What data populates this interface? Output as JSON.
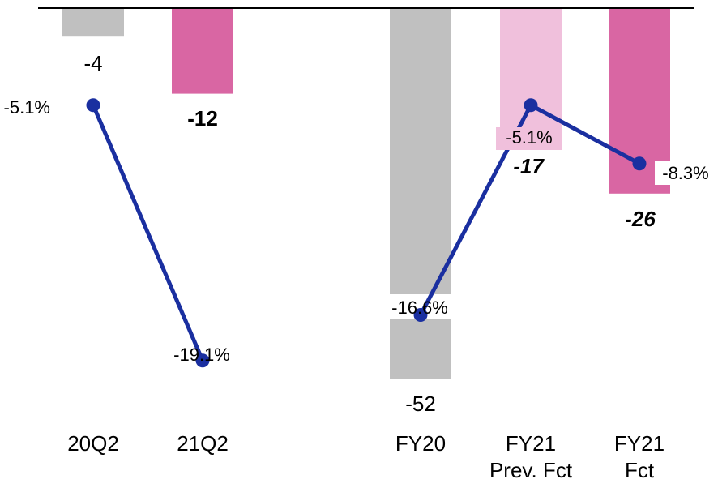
{
  "chart_data": {
    "type": "bar",
    "title": "",
    "xlabel": "",
    "ylabel": "",
    "ylim": [
      -52,
      0
    ],
    "grid": false,
    "legend": "none",
    "categories": [
      {
        "lines": [
          "20Q2"
        ]
      },
      {
        "lines": [
          "21Q2"
        ]
      },
      {
        "lines": [
          "FY20"
        ]
      },
      {
        "lines": [
          "FY21",
          "Prev. Fct"
        ]
      },
      {
        "lines": [
          "FY21",
          "Fct"
        ]
      }
    ],
    "bars": {
      "values": [
        -4,
        -12,
        -52,
        -17,
        -26
      ],
      "labels": [
        "-4",
        "-12",
        "-52",
        "-17",
        "-26"
      ],
      "colors": [
        "#c0c0c0",
        "#d966a3",
        "#c0c0c0",
        "#f0c0dc",
        "#d966a3"
      ],
      "label_bold": [
        false,
        true,
        false,
        true,
        true
      ],
      "label_italic": [
        false,
        false,
        false,
        true,
        true
      ]
    },
    "line_series": [
      {
        "points": [
          {
            "category": 0,
            "value": -5.1,
            "label": "-5.1%"
          },
          {
            "category": 1,
            "value": -19.1,
            "label": "-19.1%"
          }
        ]
      },
      {
        "points": [
          {
            "category": 2,
            "value": -16.6,
            "label": "-16.6%"
          },
          {
            "category": 3,
            "value": -5.1,
            "label": "-5.1%"
          },
          {
            "category": 4,
            "value": -8.3,
            "label": "-8.3%"
          }
        ]
      }
    ],
    "line_color": "#1a2fa0"
  }
}
